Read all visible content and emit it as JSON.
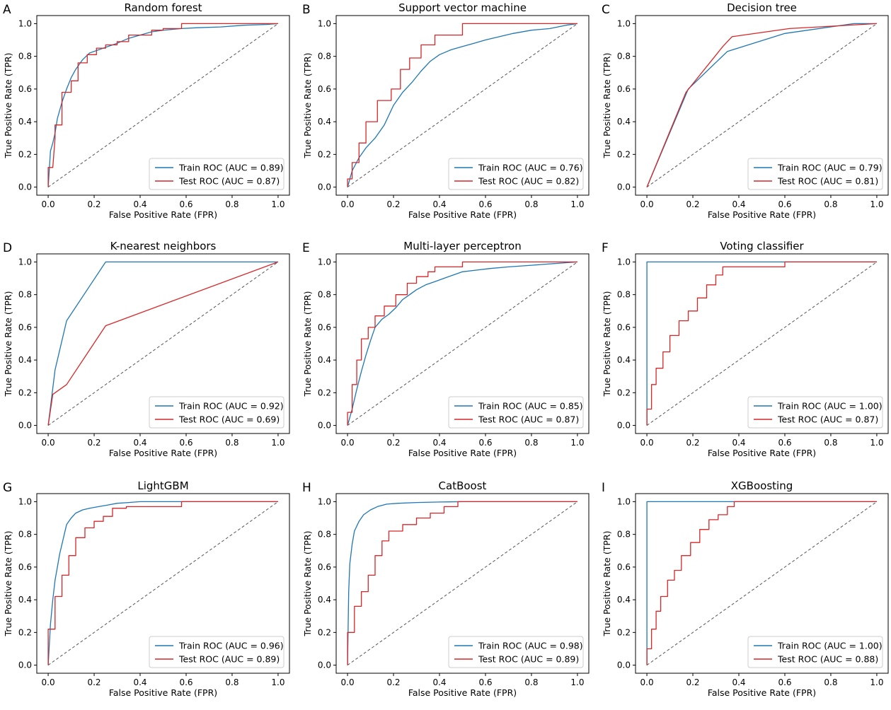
{
  "figure": {
    "xlabel": "False Positive Rate (FPR)",
    "ylabel": "True Positive Rate (TPR)",
    "colors": {
      "train": "#1f77b4",
      "test": "#d62728",
      "diagonal": "#555555"
    }
  },
  "chart_data": [
    {
      "letter": "A",
      "type": "line",
      "title": "Random forest",
      "xlabel": "False Positive Rate (FPR)",
      "ylabel": "True Positive Rate (TPR)",
      "xlim": [
        0,
        1
      ],
      "ylim": [
        0,
        1
      ],
      "xticks": [
        "0.0",
        "0.2",
        "0.4",
        "0.6",
        "0.8",
        "1.0"
      ],
      "yticks": [
        "0.0",
        "0.2",
        "0.4",
        "0.6",
        "0.8",
        "1.0"
      ],
      "legend_position": "lower-right",
      "series": [
        {
          "name": "Train ROC (AUC = 0.89)",
          "color": "#1f77b4",
          "x": [
            0,
            0.01,
            0.02,
            0.03,
            0.04,
            0.06,
            0.08,
            0.1,
            0.12,
            0.15,
            0.18,
            0.22,
            0.26,
            0.3,
            0.35,
            0.4,
            0.45,
            0.5,
            0.58,
            0.65,
            0.75,
            0.85,
            0.95,
            1.0
          ],
          "y": [
            0,
            0.22,
            0.27,
            0.33,
            0.42,
            0.52,
            0.6,
            0.67,
            0.72,
            0.78,
            0.82,
            0.84,
            0.86,
            0.88,
            0.91,
            0.93,
            0.95,
            0.96,
            0.97,
            0.975,
            0.98,
            0.99,
            0.995,
            1.0
          ]
        },
        {
          "name": "Test ROC (AUC = 0.87)",
          "color": "#d62728",
          "x": [
            0,
            0,
            0.02,
            0.03,
            0.03,
            0.06,
            0.06,
            0.1,
            0.1,
            0.13,
            0.13,
            0.17,
            0.17,
            0.21,
            0.21,
            0.25,
            0.25,
            0.3,
            0.3,
            0.35,
            0.35,
            0.45,
            0.45,
            0.5,
            0.5,
            0.58,
            0.58,
            1.0
          ],
          "y": [
            0,
            0.12,
            0.12,
            0.3,
            0.38,
            0.38,
            0.58,
            0.58,
            0.65,
            0.65,
            0.76,
            0.76,
            0.81,
            0.81,
            0.85,
            0.85,
            0.87,
            0.87,
            0.89,
            0.89,
            0.93,
            0.93,
            0.96,
            0.96,
            0.97,
            0.97,
            1.0,
            1.0
          ]
        }
      ]
    },
    {
      "letter": "B",
      "type": "line",
      "title": "Support vector machine",
      "xlabel": "False Positive Rate (FPR)",
      "ylabel": "True Positive Rate (TPR)",
      "xlim": [
        0,
        1
      ],
      "ylim": [
        0,
        1
      ],
      "xticks": [
        "0.0",
        "0.2",
        "0.4",
        "0.6",
        "0.8",
        "1.0"
      ],
      "yticks": [
        "0.0",
        "0.2",
        "0.4",
        "0.6",
        "0.8",
        "1.0"
      ],
      "legend_position": "lower-right",
      "series": [
        {
          "name": "Train ROC (AUC = 0.76)",
          "color": "#1f77b4",
          "x": [
            0,
            0.02,
            0.05,
            0.08,
            0.12,
            0.16,
            0.2,
            0.24,
            0.28,
            0.32,
            0.36,
            0.4,
            0.45,
            0.5,
            0.55,
            0.6,
            0.66,
            0.72,
            0.8,
            0.88,
            0.95,
            1.0
          ],
          "y": [
            0,
            0.1,
            0.18,
            0.24,
            0.3,
            0.38,
            0.5,
            0.58,
            0.64,
            0.71,
            0.77,
            0.81,
            0.84,
            0.86,
            0.88,
            0.9,
            0.92,
            0.94,
            0.96,
            0.97,
            0.99,
            1.0
          ]
        },
        {
          "name": "Test ROC (AUC = 0.82)",
          "color": "#d62728",
          "x": [
            0,
            0,
            0.02,
            0.02,
            0.05,
            0.05,
            0.08,
            0.08,
            0.13,
            0.13,
            0.19,
            0.19,
            0.23,
            0.23,
            0.27,
            0.27,
            0.32,
            0.32,
            0.38,
            0.38,
            0.5,
            0.5,
            1.0
          ],
          "y": [
            0,
            0.05,
            0.05,
            0.15,
            0.15,
            0.27,
            0.27,
            0.4,
            0.4,
            0.53,
            0.53,
            0.6,
            0.6,
            0.72,
            0.72,
            0.79,
            0.79,
            0.87,
            0.87,
            0.93,
            0.93,
            1.0,
            1.0
          ]
        }
      ]
    },
    {
      "letter": "C",
      "type": "line",
      "title": "Decision tree",
      "xlabel": "False Positive Rate (FPR)",
      "ylabel": "True Positive Rate (TPR)",
      "xlim": [
        0,
        1
      ],
      "ylim": [
        0,
        1
      ],
      "xticks": [
        "0.0",
        "0.2",
        "0.4",
        "0.6",
        "0.8",
        "1.0"
      ],
      "yticks": [
        "0.0",
        "0.2",
        "0.4",
        "0.6",
        "0.8",
        "1.0"
      ],
      "legend_position": "lower-right",
      "series": [
        {
          "name": "Train ROC (AUC = 0.79)",
          "color": "#1f77b4",
          "x": [
            0,
            0.18,
            0.35,
            0.6,
            0.9,
            1.0
          ],
          "y": [
            0,
            0.6,
            0.83,
            0.94,
            1.0,
            1.0
          ]
        },
        {
          "name": "Test ROC (AUC = 0.81)",
          "color": "#d62728",
          "x": [
            0,
            0.17,
            0.33,
            0.37,
            0.62,
            1.0
          ],
          "y": [
            0,
            0.58,
            0.86,
            0.92,
            0.97,
            1.0
          ]
        }
      ]
    },
    {
      "letter": "D",
      "type": "line",
      "title": "K-nearest neighbors",
      "xlabel": "False Positive Rate (FPR)",
      "ylabel": "True Positive Rate (TPR)",
      "xlim": [
        0,
        1
      ],
      "ylim": [
        0,
        1
      ],
      "xticks": [
        "0.0",
        "0.2",
        "0.4",
        "0.6",
        "0.8",
        "1.0"
      ],
      "yticks": [
        "0.0",
        "0.2",
        "0.4",
        "0.6",
        "0.8",
        "1.0"
      ],
      "legend_position": "lower-right",
      "series": [
        {
          "name": "Train ROC (AUC = 0.92)",
          "color": "#1f77b4",
          "x": [
            0,
            0.03,
            0.08,
            0.25,
            1.0
          ],
          "y": [
            0,
            0.34,
            0.64,
            1.0,
            1.0
          ]
        },
        {
          "name": "Test ROC (AUC = 0.69)",
          "color": "#d62728",
          "x": [
            0,
            0.02,
            0.08,
            0.25,
            1.0
          ],
          "y": [
            0,
            0.19,
            0.25,
            0.61,
            1.0
          ]
        }
      ]
    },
    {
      "letter": "E",
      "type": "line",
      "title": "Multi-layer perceptron",
      "xlabel": "False Positive Rate (FPR)",
      "ylabel": "True Positive Rate (TPR)",
      "xlim": [
        0,
        1
      ],
      "ylim": [
        0,
        1
      ],
      "xticks": [
        "0.0",
        "0.2",
        "0.4",
        "0.6",
        "0.8",
        "1.0"
      ],
      "yticks": [
        "0.0",
        "0.2",
        "0.4",
        "0.6",
        "0.8",
        "1.0"
      ],
      "legend_position": "lower-right",
      "series": [
        {
          "name": "Train ROC (AUC = 0.85)",
          "color": "#1f77b4",
          "x": [
            0,
            0.02,
            0.04,
            0.06,
            0.08,
            0.1,
            0.12,
            0.15,
            0.18,
            0.21,
            0.24,
            0.27,
            0.3,
            0.34,
            0.38,
            0.42,
            0.46,
            0.5,
            0.56,
            0.62,
            0.7,
            0.8,
            0.9,
            1.0
          ],
          "y": [
            0,
            0.1,
            0.22,
            0.33,
            0.43,
            0.52,
            0.6,
            0.65,
            0.68,
            0.72,
            0.77,
            0.8,
            0.83,
            0.86,
            0.88,
            0.9,
            0.92,
            0.94,
            0.95,
            0.96,
            0.97,
            0.98,
            0.99,
            1.0
          ]
        },
        {
          "name": "Test ROC (AUC = 0.87)",
          "color": "#d62728",
          "x": [
            0,
            0,
            0.02,
            0.02,
            0.04,
            0.04,
            0.06,
            0.06,
            0.09,
            0.09,
            0.12,
            0.12,
            0.16,
            0.16,
            0.21,
            0.21,
            0.26,
            0.26,
            0.3,
            0.3,
            0.35,
            0.35,
            0.38,
            0.38,
            0.5,
            0.5,
            1.0
          ],
          "y": [
            0,
            0.08,
            0.08,
            0.25,
            0.25,
            0.4,
            0.4,
            0.53,
            0.53,
            0.6,
            0.6,
            0.67,
            0.67,
            0.73,
            0.73,
            0.8,
            0.8,
            0.87,
            0.87,
            0.91,
            0.91,
            0.94,
            0.94,
            0.97,
            0.97,
            1.0,
            1.0
          ]
        }
      ]
    },
    {
      "letter": "F",
      "type": "line",
      "title": "Voting classifier",
      "xlabel": "False Positive Rate (FPR)",
      "ylabel": "True Positive Rate (TPR)",
      "xlim": [
        0,
        1
      ],
      "ylim": [
        0,
        1
      ],
      "xticks": [
        "0.0",
        "0.2",
        "0.4",
        "0.6",
        "0.8",
        "1.0"
      ],
      "yticks": [
        "0.0",
        "0.2",
        "0.4",
        "0.6",
        "0.8",
        "1.0"
      ],
      "legend_position": "lower-right",
      "series": [
        {
          "name": "Train ROC (AUC = 1.00)",
          "color": "#1f77b4",
          "x": [
            0,
            0,
            1.0
          ],
          "y": [
            0,
            1.0,
            1.0
          ]
        },
        {
          "name": "Test ROC (AUC = 0.87)",
          "color": "#d62728",
          "x": [
            0,
            0,
            0.02,
            0.02,
            0.04,
            0.04,
            0.07,
            0.07,
            0.1,
            0.1,
            0.14,
            0.14,
            0.18,
            0.18,
            0.22,
            0.22,
            0.26,
            0.26,
            0.3,
            0.3,
            0.33,
            0.33,
            0.6,
            0.6,
            1.0
          ],
          "y": [
            0,
            0.1,
            0.1,
            0.25,
            0.25,
            0.35,
            0.35,
            0.45,
            0.45,
            0.55,
            0.55,
            0.64,
            0.64,
            0.7,
            0.7,
            0.78,
            0.78,
            0.86,
            0.86,
            0.92,
            0.92,
            0.97,
            0.97,
            1.0,
            1.0
          ]
        }
      ]
    },
    {
      "letter": "G",
      "type": "line",
      "title": "LightGBM",
      "xlabel": "False Positive Rate (FPR)",
      "ylabel": "True Positive Rate (TPR)",
      "xlim": [
        0,
        1
      ],
      "ylim": [
        0,
        1
      ],
      "xticks": [
        "0.0",
        "0.2",
        "0.4",
        "0.6",
        "0.8",
        "1.0"
      ],
      "yticks": [
        "0.0",
        "0.2",
        "0.4",
        "0.6",
        "0.8",
        "1.0"
      ],
      "legend_position": "lower-right",
      "series": [
        {
          "name": "Train ROC (AUC = 0.96)",
          "color": "#1f77b4",
          "x": [
            0,
            0.01,
            0.02,
            0.03,
            0.04,
            0.05,
            0.06,
            0.07,
            0.08,
            0.1,
            0.12,
            0.15,
            0.18,
            0.22,
            0.26,
            0.3,
            0.35,
            0.4,
            0.5,
            0.58,
            1.0
          ],
          "y": [
            0,
            0.25,
            0.4,
            0.52,
            0.6,
            0.68,
            0.74,
            0.8,
            0.86,
            0.9,
            0.93,
            0.95,
            0.96,
            0.97,
            0.98,
            0.99,
            0.995,
            1.0,
            1.0,
            1.0,
            1.0
          ]
        },
        {
          "name": "Test ROC (AUC = 0.89)",
          "color": "#d62728",
          "x": [
            0,
            0,
            0.03,
            0.03,
            0.06,
            0.06,
            0.09,
            0.09,
            0.12,
            0.12,
            0.16,
            0.16,
            0.2,
            0.2,
            0.24,
            0.24,
            0.28,
            0.28,
            0.34,
            0.34,
            0.58,
            0.58,
            1.0
          ],
          "y": [
            0,
            0.22,
            0.22,
            0.42,
            0.42,
            0.55,
            0.55,
            0.67,
            0.67,
            0.78,
            0.78,
            0.84,
            0.84,
            0.88,
            0.88,
            0.91,
            0.91,
            0.96,
            0.96,
            0.97,
            0.97,
            1.0,
            1.0
          ]
        }
      ]
    },
    {
      "letter": "H",
      "type": "line",
      "title": "CatBoost",
      "xlabel": "False Positive Rate (FPR)",
      "ylabel": "True Positive Rate (TPR)",
      "xlim": [
        0,
        1
      ],
      "ylim": [
        0,
        1
      ],
      "xticks": [
        "0.0",
        "0.2",
        "0.4",
        "0.6",
        "0.8",
        "1.0"
      ],
      "yticks": [
        "0.0",
        "0.2",
        "0.4",
        "0.6",
        "0.8",
        "1.0"
      ],
      "legend_position": "lower-right",
      "series": [
        {
          "name": "Train ROC (AUC = 0.98)",
          "color": "#1f77b4",
          "x": [
            0,
            0.005,
            0.01,
            0.02,
            0.03,
            0.05,
            0.07,
            0.1,
            0.13,
            0.17,
            0.22,
            0.3,
            0.4,
            0.5,
            1.0
          ],
          "y": [
            0,
            0.45,
            0.62,
            0.74,
            0.82,
            0.88,
            0.92,
            0.95,
            0.97,
            0.985,
            0.99,
            0.995,
            0.998,
            1.0,
            1.0
          ]
        },
        {
          "name": "Test ROC (AUC = 0.89)",
          "color": "#d62728",
          "x": [
            0,
            0,
            0.03,
            0.03,
            0.06,
            0.06,
            0.09,
            0.09,
            0.12,
            0.12,
            0.15,
            0.15,
            0.18,
            0.18,
            0.24,
            0.24,
            0.3,
            0.3,
            0.36,
            0.36,
            0.42,
            0.42,
            0.48,
            0.48,
            1.0
          ],
          "y": [
            0,
            0.2,
            0.2,
            0.36,
            0.36,
            0.45,
            0.45,
            0.55,
            0.55,
            0.67,
            0.67,
            0.76,
            0.76,
            0.82,
            0.82,
            0.86,
            0.86,
            0.9,
            0.9,
            0.93,
            0.93,
            0.97,
            0.97,
            1.0,
            1.0
          ]
        }
      ]
    },
    {
      "letter": "I",
      "type": "line",
      "title": "XGBoosting",
      "xlabel": "False Positive Rate (FPR)",
      "ylabel": "True Positive Rate (TPR)",
      "xlim": [
        0,
        1
      ],
      "ylim": [
        0,
        1
      ],
      "xticks": [
        "0.0",
        "0.2",
        "0.4",
        "0.6",
        "0.8",
        "1.0"
      ],
      "yticks": [
        "0.0",
        "0.2",
        "0.4",
        "0.6",
        "0.8",
        "1.0"
      ],
      "legend_position": "lower-right",
      "series": [
        {
          "name": "Train ROC (AUC = 1.00)",
          "color": "#1f77b4",
          "x": [
            0,
            0,
            1.0
          ],
          "y": [
            0,
            1.0,
            1.0
          ]
        },
        {
          "name": "Test ROC (AUC = 0.88)",
          "color": "#d62728",
          "x": [
            0,
            0,
            0.02,
            0.02,
            0.04,
            0.04,
            0.06,
            0.06,
            0.09,
            0.09,
            0.12,
            0.12,
            0.15,
            0.15,
            0.19,
            0.19,
            0.23,
            0.23,
            0.27,
            0.27,
            0.31,
            0.31,
            0.35,
            0.35,
            0.38,
            0.38,
            1.0
          ],
          "y": [
            0,
            0.1,
            0.1,
            0.22,
            0.22,
            0.33,
            0.33,
            0.42,
            0.42,
            0.52,
            0.52,
            0.58,
            0.58,
            0.67,
            0.67,
            0.75,
            0.75,
            0.83,
            0.83,
            0.89,
            0.89,
            0.92,
            0.92,
            0.97,
            0.97,
            1.0,
            1.0
          ]
        }
      ]
    }
  ]
}
